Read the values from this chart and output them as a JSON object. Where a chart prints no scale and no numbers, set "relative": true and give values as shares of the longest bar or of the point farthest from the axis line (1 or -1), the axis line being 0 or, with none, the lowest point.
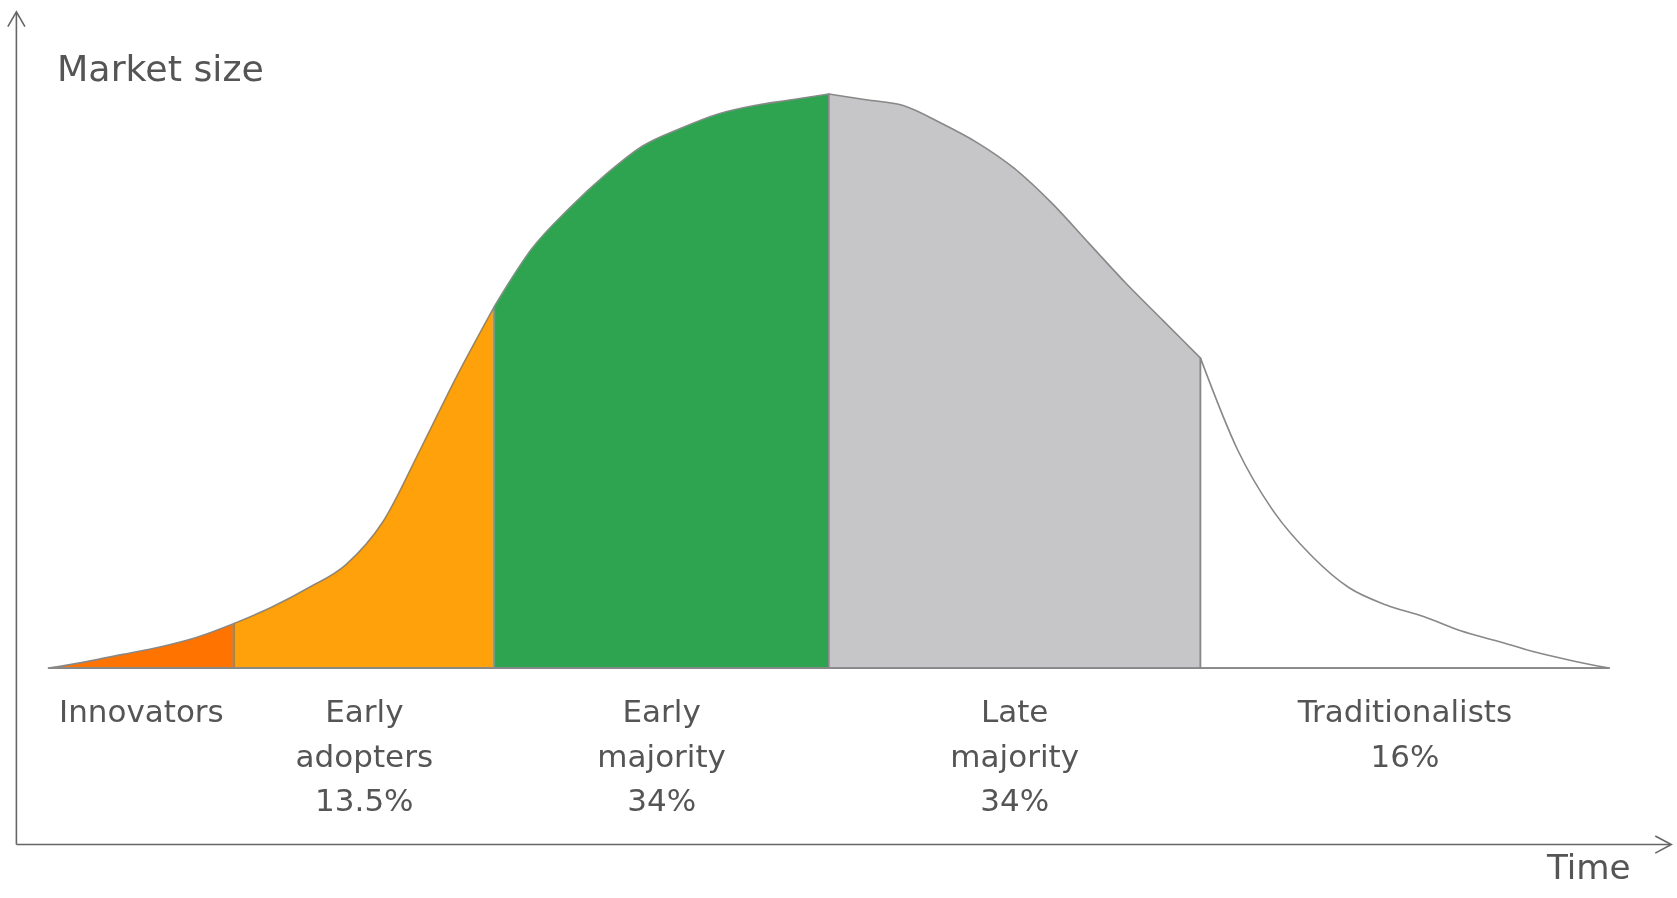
{
  "chart_data": {
    "type": "area",
    "relative": true,
    "annotations": [
      "Time"
    ],
    "ylabel": "Market size",
    "categories": [
      null,
      null,
      null,
      null,
      null,
      null,
      null,
      null,
      null,
      null,
      null,
      null,
      null,
      null,
      null,
      null,
      null,
      null,
      null,
      null,
      null,
      null,
      null,
      null,
      null,
      null,
      null,
      null,
      null,
      null,
      null,
      null,
      null,
      null,
      null,
      null,
      null,
      null,
      null,
      null,
      null,
      null,
      null
    ],
    "series": [
      {
        "name": "Innovators",
        "color": "#ff7300",
        "values": [
          0,
          0.011,
          0.024,
          0.037,
          0.054,
          0.078,
          null,
          null,
          null,
          null,
          null,
          null,
          null,
          null,
          null,
          null,
          null,
          null,
          null,
          null,
          null,
          null,
          null,
          null,
          null,
          null,
          null,
          null,
          null,
          null,
          null,
          null,
          null,
          null,
          null,
          null,
          null,
          null,
          null,
          null,
          null,
          null,
          null
        ]
      },
      {
        "name": "Early\nadopters\n13.5%",
        "color": "#ffa10a",
        "values": [
          null,
          null,
          null,
          null,
          null,
          0.078,
          0.106,
          0.14,
          0.18,
          0.255,
          0.38,
          0.51,
          0.63,
          null,
          null,
          null,
          null,
          null,
          null,
          null,
          null,
          null,
          null,
          null,
          null,
          null,
          null,
          null,
          null,
          null,
          null,
          null,
          null,
          null,
          null,
          null,
          null,
          null,
          null,
          null,
          null,
          null,
          null
        ]
      },
      {
        "name": "Early\nmajority\n34%",
        "color": "#2fa450",
        "values": [
          null,
          null,
          null,
          null,
          null,
          null,
          null,
          null,
          null,
          null,
          null,
          null,
          0.63,
          0.73,
          0.8,
          0.86,
          0.91,
          0.94,
          0.965,
          0.98,
          0.99,
          1,
          null,
          null,
          null,
          null,
          null,
          null,
          null,
          null,
          null,
          null,
          null,
          null,
          null,
          null,
          null,
          null,
          null,
          null,
          null,
          null,
          null
        ]
      },
      {
        "name": "Late\nmajority\n34%",
        "color": "#c6c5c8",
        "values": [
          null,
          null,
          null,
          null,
          null,
          null,
          null,
          null,
          null,
          null,
          null,
          null,
          null,
          null,
          null,
          null,
          null,
          null,
          null,
          null,
          null,
          1,
          0.99,
          0.98,
          0.95,
          0.915,
          0.87,
          0.81,
          0.74,
          0.67,
          0.605,
          0.54,
          null,
          null,
          null,
          null,
          null,
          null,
          null,
          null,
          null,
          null,
          null
        ]
      },
      {
        "name": "Traditionalists\n16%",
        "color": "#ffffff",
        "values": [
          null,
          null,
          null,
          null,
          null,
          null,
          null,
          null,
          null,
          null,
          null,
          null,
          null,
          null,
          null,
          null,
          null,
          null,
          null,
          null,
          null,
          null,
          null,
          null,
          null,
          null,
          null,
          null,
          null,
          null,
          null,
          0.54,
          0.38,
          0.27,
          0.195,
          0.14,
          0.11,
          0.09,
          0.065,
          0.047,
          0.028,
          0.013,
          0
        ]
      }
    ]
  }
}
